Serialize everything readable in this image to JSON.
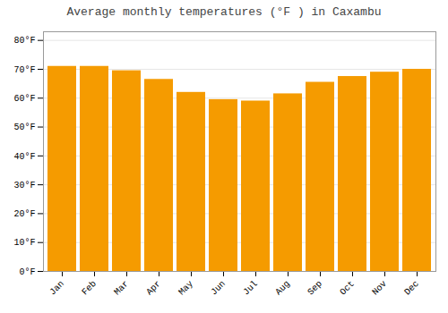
{
  "chart_data": {
    "type": "bar",
    "title": "Average monthly temperatures (°F ) in Caxambu",
    "categories": [
      "Jan",
      "Feb",
      "Mar",
      "Apr",
      "May",
      "Jun",
      "Jul",
      "Aug",
      "Sep",
      "Oct",
      "Nov",
      "Dec"
    ],
    "values": [
      71,
      71,
      69.5,
      66.5,
      62,
      59.5,
      59,
      61.5,
      65.5,
      67.5,
      69,
      70
    ],
    "color": "#F59B00",
    "ylim": [
      0,
      83
    ],
    "yticks": [
      {
        "value": 0,
        "label": "0°F"
      },
      {
        "value": 10,
        "label": "10°F"
      },
      {
        "value": 20,
        "label": "20°F"
      },
      {
        "value": 30,
        "label": "30°F"
      },
      {
        "value": 40,
        "label": "40°F"
      },
      {
        "value": 50,
        "label": "50°F"
      },
      {
        "value": 60,
        "label": "60°F"
      },
      {
        "value": 70,
        "label": "70°F"
      },
      {
        "value": 80,
        "label": "80°F"
      }
    ],
    "grid": true
  }
}
